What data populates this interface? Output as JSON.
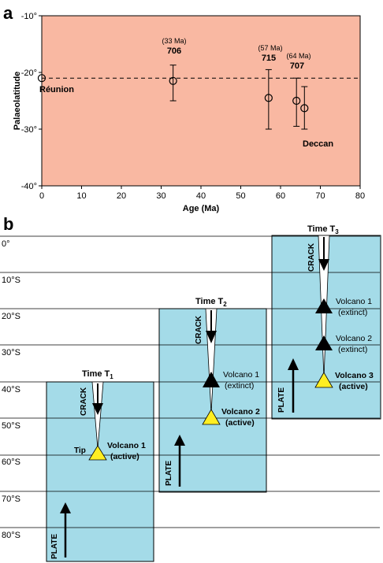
{
  "panel_a": {
    "letter": "a",
    "y_ticks": [
      "-10°",
      "-20°",
      "-30°",
      "-40°"
    ],
    "x_ticks": [
      "0",
      "10",
      "20",
      "30",
      "40",
      "50",
      "60",
      "70",
      "80"
    ],
    "ylabel": "Palaeolatitude",
    "xlabel": "Age (Ma)",
    "labels": {
      "reunion": "Réunion",
      "deccan": "Deccan",
      "ann_706_age": "(33 Ma)",
      "ann_706": "706",
      "ann_715_age": "(57 Ma)",
      "ann_715": "715",
      "ann_707_age": "(64 Ma)",
      "ann_707": "707"
    },
    "colors": {
      "plot_bg": "#f9b8a2",
      "axis": "#000000"
    }
  },
  "chart_data": {
    "type": "scatter",
    "xlabel": "Age (Ma)",
    "ylabel": "Palaeolatitude",
    "xlim": [
      0,
      80
    ],
    "ylim": [
      -40,
      -10
    ],
    "reference_line_y": -21,
    "points": [
      {
        "x": 0,
        "y": -21,
        "ymin": -21,
        "ymax": -21,
        "label": "Réunion"
      },
      {
        "x": 33,
        "y": -21.5,
        "ymin": -25,
        "ymax": -18.7,
        "label": "706"
      },
      {
        "x": 57,
        "y": -24.5,
        "ymin": -30,
        "ymax": -19.5,
        "label": "715"
      },
      {
        "x": 64,
        "y": -25,
        "ymin": -29.5,
        "ymax": -21,
        "label": "707"
      },
      {
        "x": 66,
        "y": -26.3,
        "ymin": -30,
        "ymax": -22.5,
        "label": "Deccan"
      }
    ]
  },
  "panel_b": {
    "letter": "b",
    "lat_labels": [
      "0°",
      "10°S",
      "20°S",
      "30°S",
      "40°S",
      "50°S",
      "60°S",
      "70°S",
      "80°S"
    ],
    "time1": {
      "main": "Time T",
      "sub": "1"
    },
    "time2": {
      "main": "Time T",
      "sub": "2"
    },
    "time3": {
      "main": "Time T",
      "sub": "3"
    },
    "crack": "CRACK",
    "plate": "PLATE",
    "tip": "Tip",
    "volcano1": "Volcano 1",
    "volcano2": "Volcano 2",
    "volcano3": "Volcano 3",
    "active": "(active)",
    "extinct": "(extinct)",
    "colors": {
      "box": "#a4dbe8",
      "active_volcano": "#ffee22",
      "extinct_volcano": "#000000"
    }
  }
}
